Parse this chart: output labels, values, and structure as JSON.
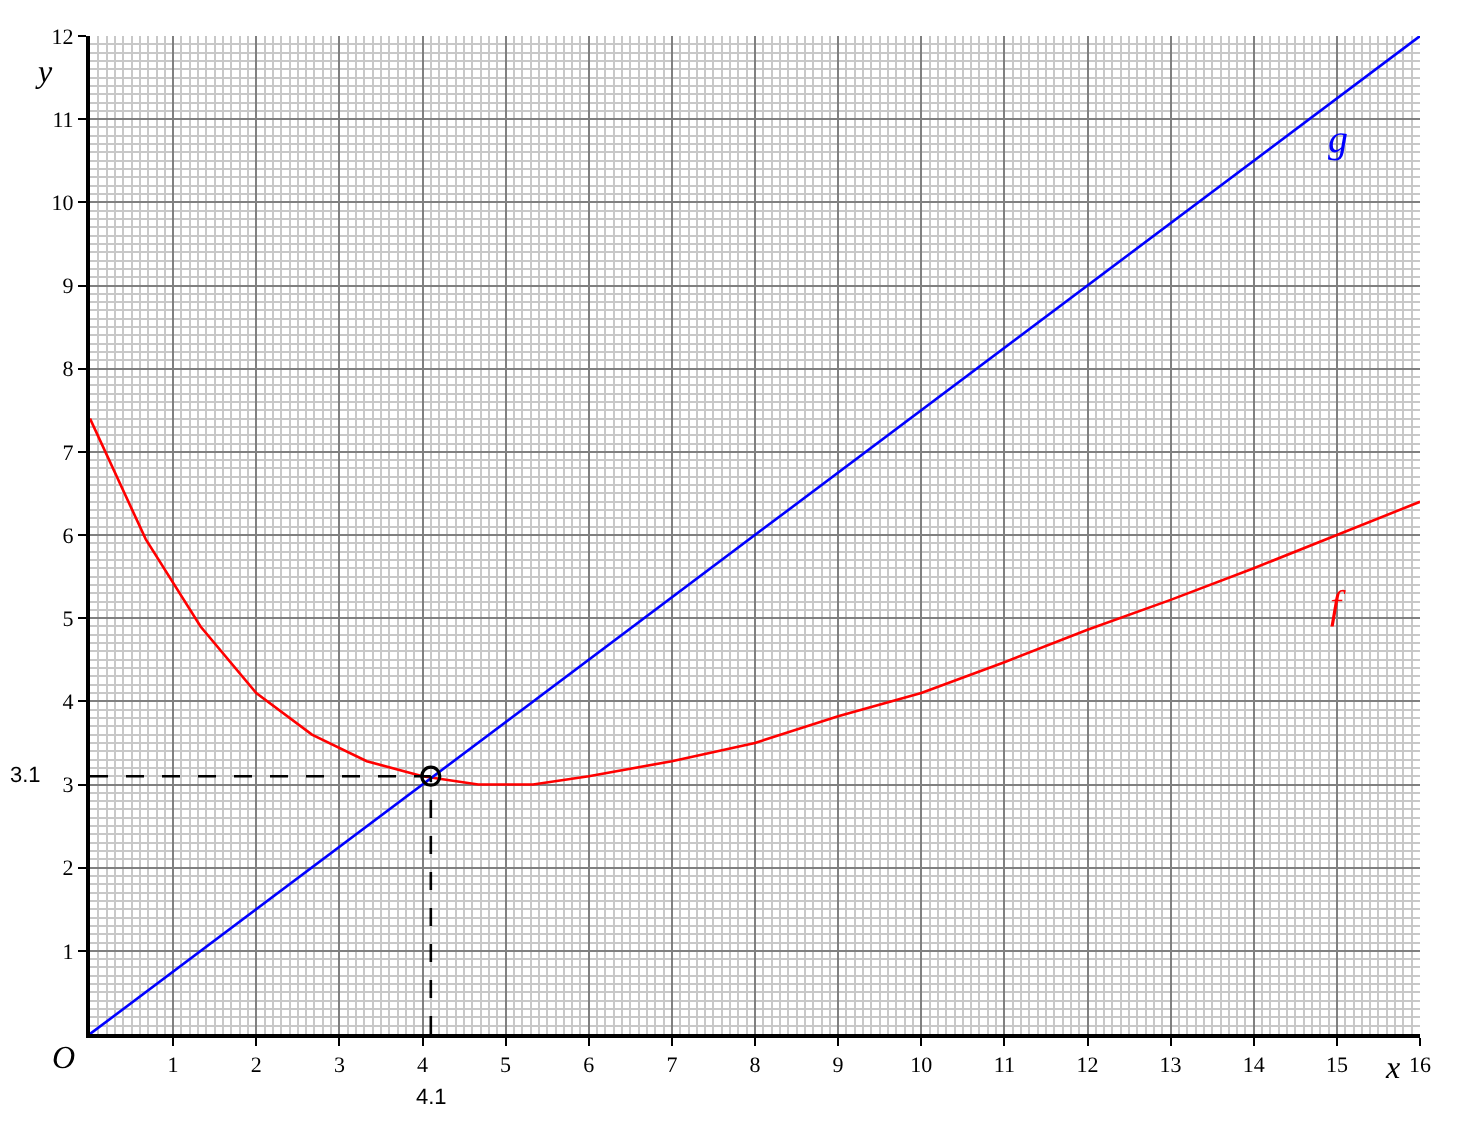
{
  "chart_data": {
    "type": "line",
    "xlabel": "x",
    "ylabel": "y",
    "xlim": [
      0,
      16
    ],
    "ylim": [
      0,
      12
    ],
    "xticks": [
      1,
      2,
      3,
      4,
      5,
      6,
      7,
      8,
      9,
      10,
      11,
      12,
      13,
      14,
      15,
      16
    ],
    "yticks": [
      1,
      2,
      3,
      4,
      5,
      6,
      7,
      8,
      9,
      10,
      11,
      12
    ],
    "grid": true,
    "legend": false,
    "marker": "none",
    "line_style": "solid",
    "series": [
      {
        "name": "f",
        "color": "#ff0000",
        "x": [
          0,
          0.67,
          1.33,
          2,
          2.67,
          3.33,
          4,
          4.67,
          5.33,
          6,
          7,
          8,
          9,
          10,
          11,
          12,
          13,
          14,
          15,
          16
        ],
        "values": [
          7.4,
          5.95,
          4.9,
          4.1,
          3.6,
          3.28,
          3.1,
          3.0,
          3.0,
          3.1,
          3.28,
          3.5,
          3.82,
          4.1,
          4.47,
          4.86,
          5.22,
          5.6,
          6.0,
          6.4
        ]
      },
      {
        "name": "g",
        "color": "#0000ff",
        "x": [
          0,
          16
        ],
        "values": [
          0,
          12
        ]
      },
      {
        "type": "scatter",
        "marker": "circle",
        "color": "#000000",
        "x": [
          4.1
        ],
        "values": [
          3.1
        ]
      }
    ],
    "ref_lines": [
      {
        "axis": "x",
        "value": 4.1,
        "label": "4.1",
        "line_style": "dashed",
        "color": "#000000"
      },
      {
        "axis": "y",
        "value": 3.1,
        "label": "3.1",
        "line_style": "dashed",
        "color": "#000000"
      }
    ],
    "annotations": [
      {
        "text": "O",
        "x": 0,
        "y": 0
      }
    ]
  }
}
